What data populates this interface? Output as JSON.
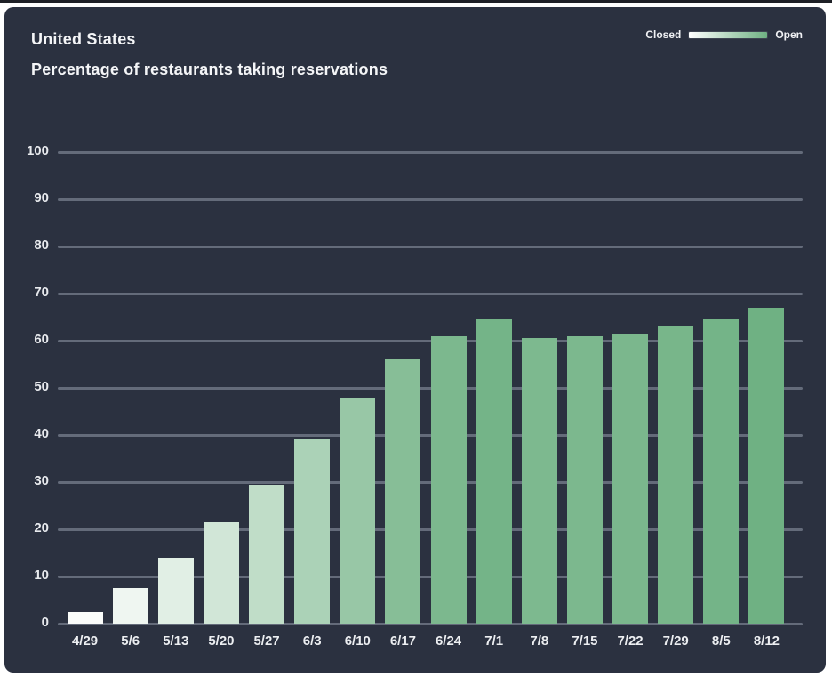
{
  "header": {
    "title": "United States",
    "subtitle": "Percentage of restaurants taking reservations"
  },
  "legend": {
    "closed_label": "Closed",
    "open_label": "Open"
  },
  "colors": {
    "panel_bg": "#2b3140",
    "page_bg": "#ffffff",
    "gridline": "#646b7a",
    "text": "#f4f5f7",
    "closed": "#ffffff",
    "open": "#6fb183"
  },
  "chart_data": {
    "type": "bar",
    "title": "United States",
    "subtitle": "Percentage of restaurants taking reservations",
    "categories": [
      "4/29",
      "5/6",
      "5/13",
      "5/20",
      "5/27",
      "6/3",
      "6/10",
      "6/17",
      "6/24",
      "7/1",
      "7/8",
      "7/15",
      "7/22",
      "7/29",
      "8/5",
      "8/12"
    ],
    "values": [
      2.5,
      7.5,
      14,
      21.5,
      29.5,
      39,
      48,
      56,
      61,
      64.5,
      60.5,
      61,
      61.5,
      63,
      64.5,
      67
    ],
    "xlabel": "",
    "ylabel": "",
    "ylim": [
      0,
      100
    ],
    "yticks": [
      0,
      10,
      20,
      30,
      40,
      50,
      60,
      70,
      80,
      90,
      100
    ],
    "grid": true,
    "legend_position": "top-right",
    "legend_type": "gradient-closed-to-open",
    "color_mapping": "bar color interpolates from white (closed) to green (open) with value"
  }
}
